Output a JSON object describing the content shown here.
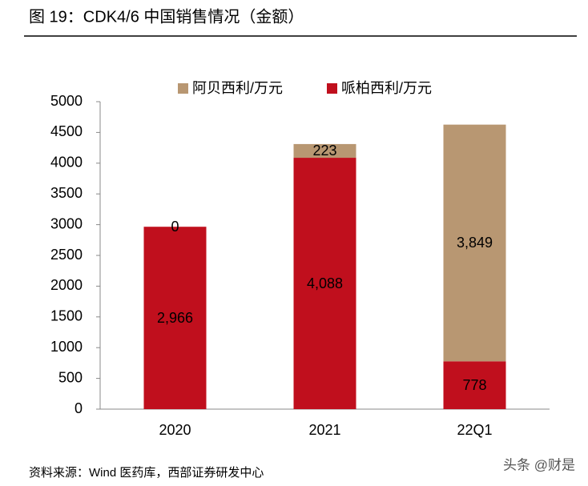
{
  "chart_data": {
    "type": "stacked-bar",
    "title": "图 19：CDK4/6 中国销售情况（金额）",
    "source": "资料来源：Wind 医药库，西部证券研发中心",
    "watermark": "头条 @财是",
    "categories": [
      "2020",
      "2021",
      "22Q1"
    ],
    "series": [
      {
        "name": "哌柏西利/万元",
        "color": "#c00f1d",
        "values": [
          2966,
          4088,
          778
        ],
        "value_labels": [
          "2,966",
          "4,088",
          "778"
        ]
      },
      {
        "name": "阿贝西利/万元",
        "color": "#b89772",
        "values": [
          0,
          223,
          3849
        ],
        "value_labels": [
          "0",
          "223",
          "3,849"
        ]
      }
    ],
    "ylim": [
      0,
      5000
    ],
    "yticks": [
      0,
      500,
      1000,
      1500,
      2000,
      2500,
      3000,
      3500,
      4000,
      4500,
      5000
    ],
    "grid": false
  }
}
